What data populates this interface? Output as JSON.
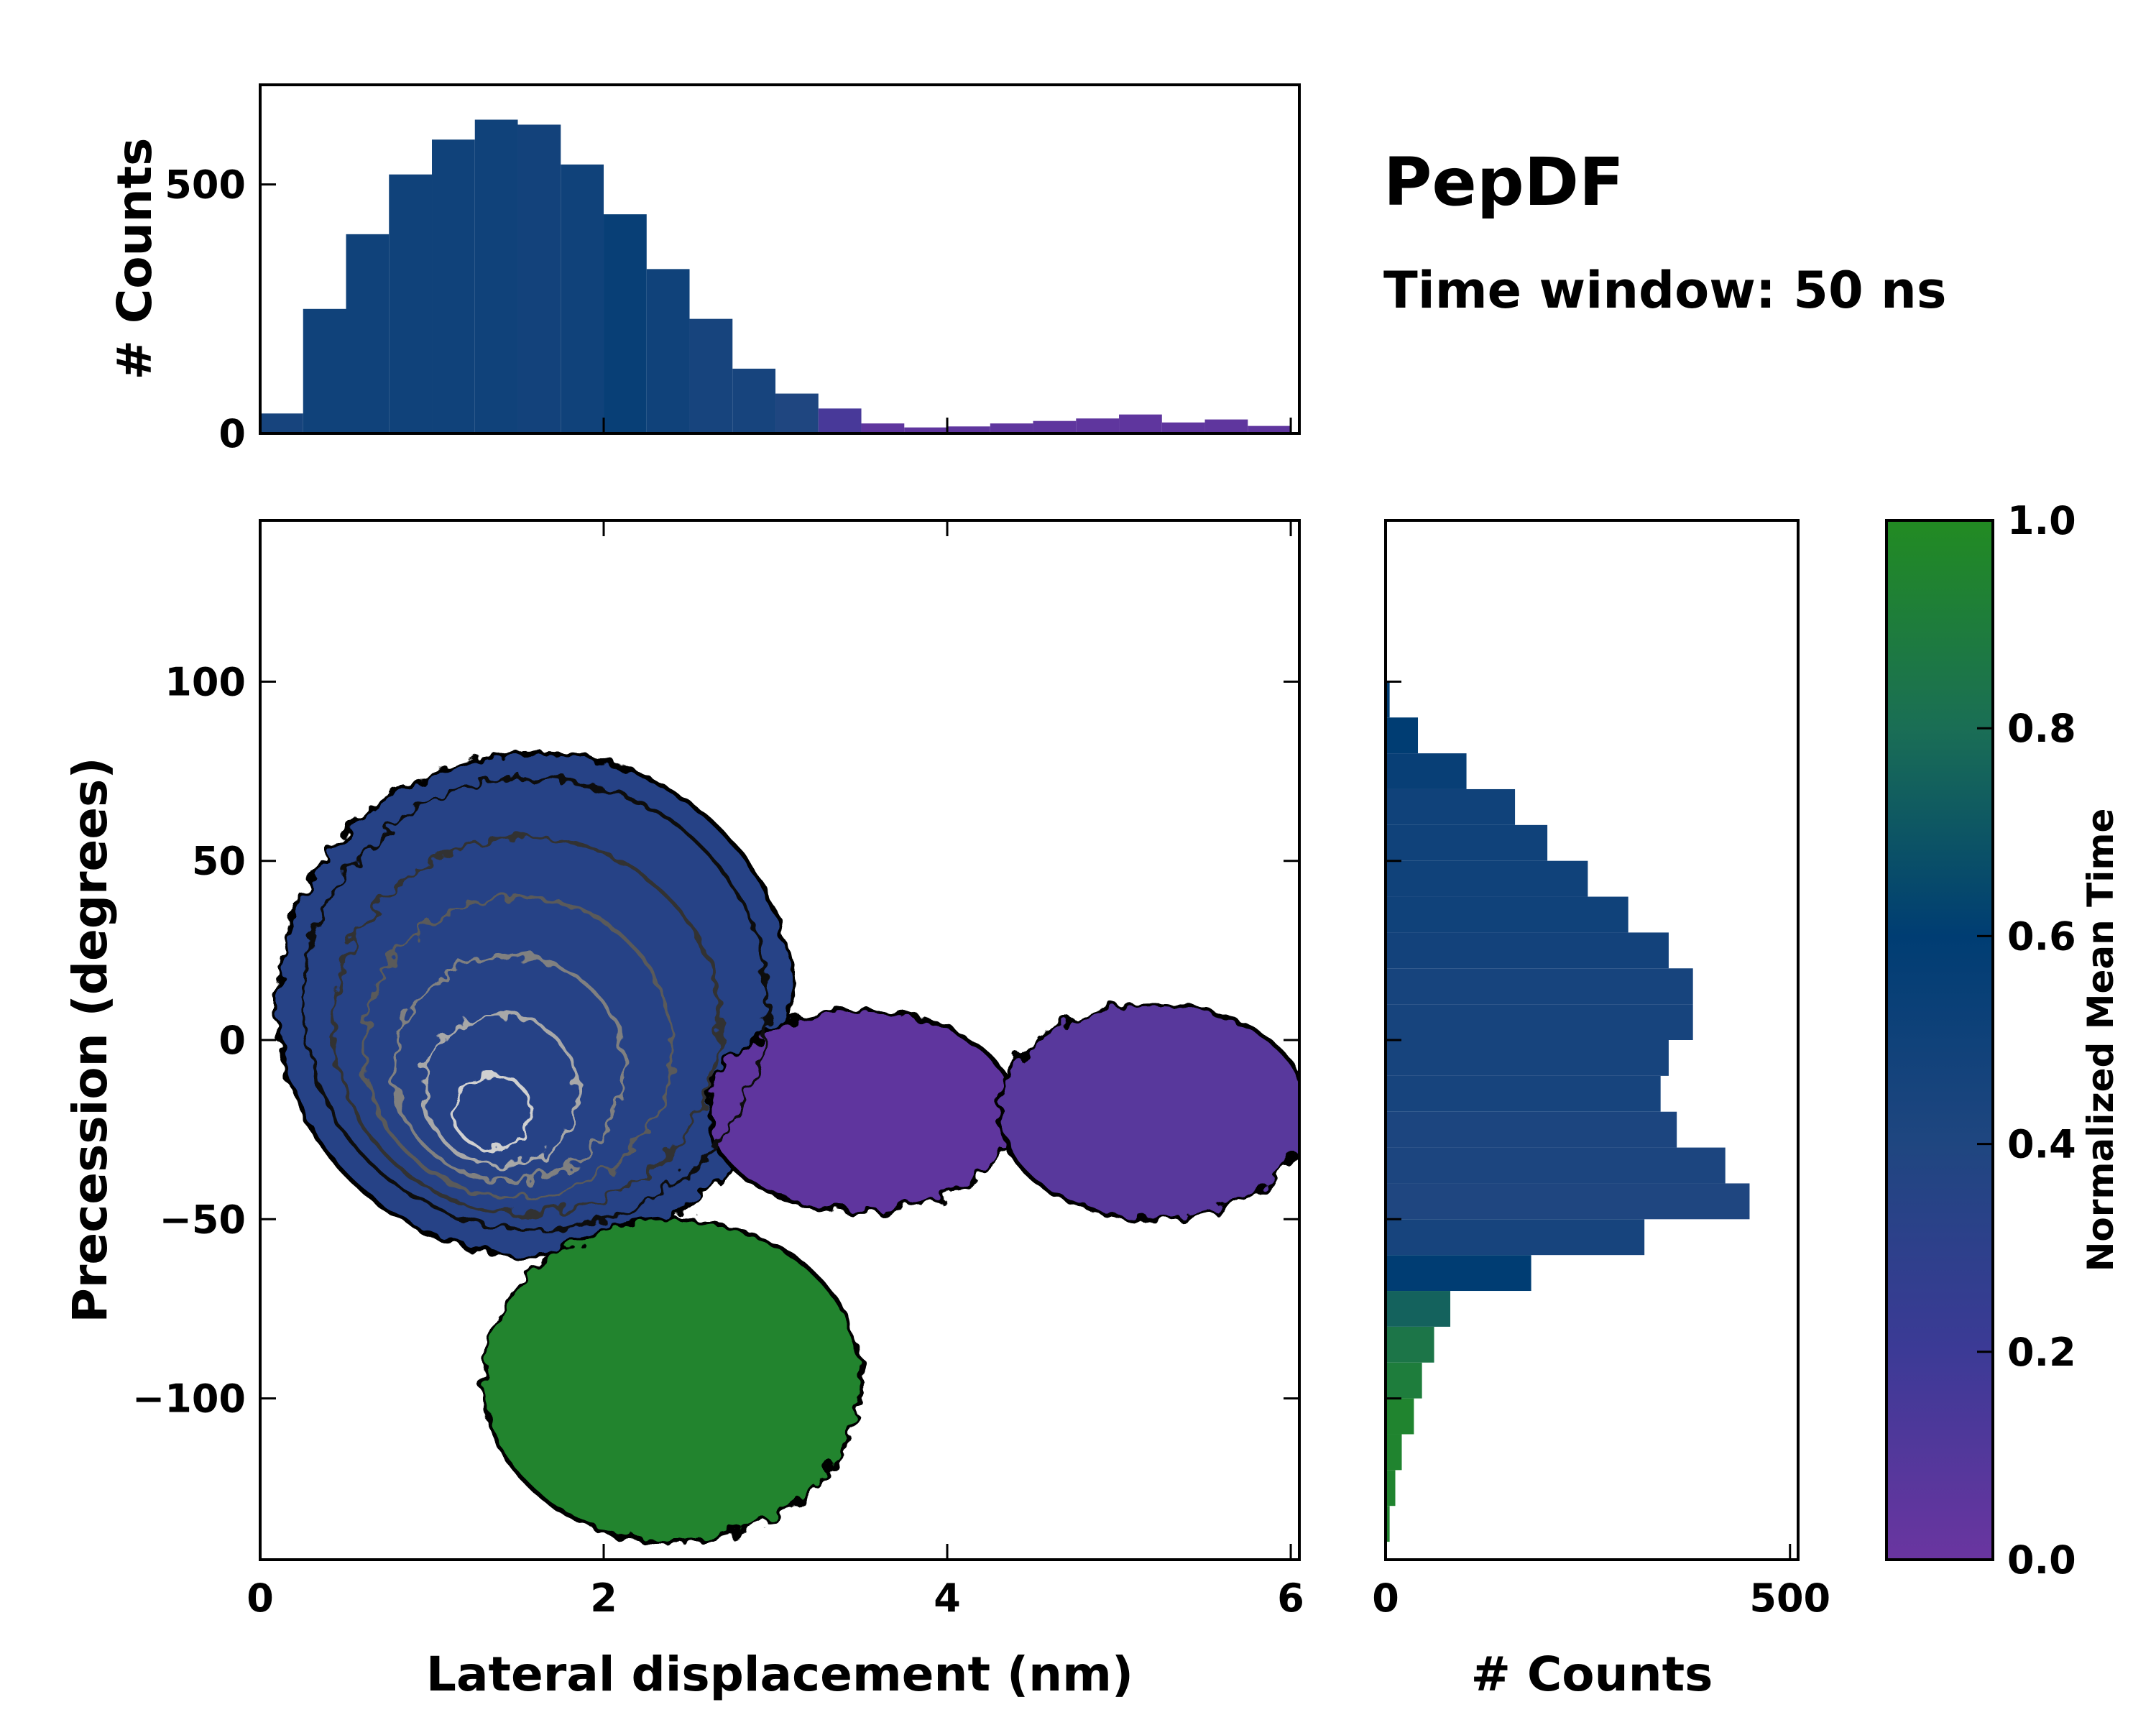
{
  "chart_data": {
    "type": "heatmap",
    "title": "PepDF",
    "subtitle": "Time window: 50 ns",
    "main": {
      "xlabel": "Lateral displacement (nm)",
      "ylabel": "Precession (degrees)",
      "xlim": [
        0,
        6.05
      ],
      "ylim": [
        -145,
        145
      ],
      "xticks": [
        0,
        2,
        4,
        6
      ],
      "xtick_labels": [
        "0",
        "2",
        "4",
        "6"
      ],
      "yticks": [
        -100,
        -50,
        0,
        50,
        100
      ],
      "ytick_labels": [
        "−100",
        "−50",
        "0",
        "50",
        "100"
      ],
      "regions": [
        {
          "name": "main-cluster",
          "cx": 1.6,
          "cy": 10,
          "rx": 1.5,
          "ry": 70,
          "color_value": 0.35
        },
        {
          "name": "lower-green-lobe",
          "cx": 2.4,
          "cy": -95,
          "rx": 1.1,
          "ry": 45,
          "color_value": 0.95
        },
        {
          "name": "purple-bridge",
          "cx": 3.5,
          "cy": -20,
          "rx": 0.9,
          "ry": 28,
          "color_value": 0.05
        },
        {
          "name": "right-purple-lobe",
          "cx": 5.2,
          "cy": -20,
          "rx": 0.9,
          "ry": 30,
          "color_value": 0.08
        }
      ]
    },
    "top_histogram": {
      "ylabel": "# Counts",
      "ylim": [
        0,
        700
      ],
      "yticks": [
        0,
        500
      ],
      "ytick_labels": [
        "0",
        "500"
      ],
      "bin_start": 0.0,
      "bin_width": 0.25,
      "counts": [
        40,
        250,
        400,
        520,
        590,
        630,
        620,
        540,
        440,
        330,
        230,
        130,
        80,
        50,
        20,
        12,
        14,
        20,
        25,
        30,
        38,
        22,
        28,
        15
      ],
      "colors": [
        0.45,
        0.5,
        0.5,
        0.5,
        0.5,
        0.5,
        0.48,
        0.5,
        0.55,
        0.5,
        0.45,
        0.45,
        0.4,
        0.15,
        0.05,
        0.05,
        0.05,
        0.05,
        0.05,
        0.05,
        0.05,
        0.05,
        0.05,
        0.05
      ]
    },
    "right_histogram": {
      "xlabel": "# Counts",
      "xlim": [
        0,
        510
      ],
      "xticks": [
        0,
        500
      ],
      "xtick_labels": [
        "0",
        "500"
      ],
      "bin_start": 100,
      "bin_width": -10,
      "counts": [
        5,
        40,
        100,
        160,
        200,
        250,
        300,
        350,
        380,
        380,
        350,
        340,
        360,
        420,
        450,
        320,
        180,
        80,
        60,
        45,
        35,
        20,
        12,
        5
      ],
      "colors": [
        0.6,
        0.6,
        0.55,
        0.5,
        0.5,
        0.5,
        0.5,
        0.48,
        0.45,
        0.45,
        0.45,
        0.45,
        0.42,
        0.42,
        0.4,
        0.45,
        0.6,
        0.75,
        0.85,
        0.9,
        0.95,
        0.95,
        0.95,
        0.95
      ]
    },
    "colorbar": {
      "label": "Normalized Mean Time",
      "range": [
        0,
        1
      ],
      "ticks": [
        0,
        0.2,
        0.4,
        0.6,
        0.8,
        1.0
      ],
      "tick_labels": [
        "0.0",
        "0.2",
        "0.4",
        "0.6",
        "0.8",
        "1.0"
      ],
      "colors": [
        "#6a35a0",
        "#3c3a96",
        "#1f4680",
        "#003d73",
        "#1a6e55",
        "#228b22"
      ]
    }
  }
}
